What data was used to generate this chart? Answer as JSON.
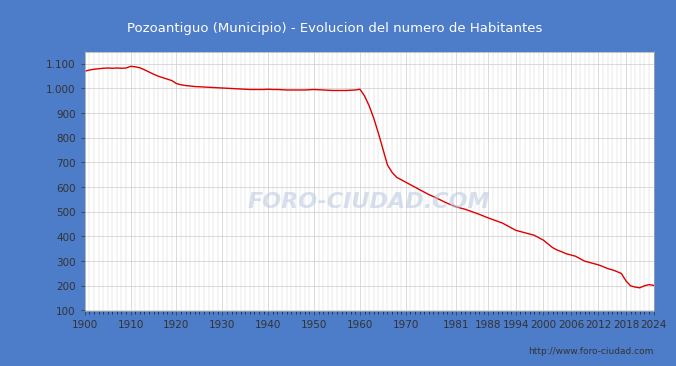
{
  "title": "Pozoantiguo (Municipio) - Evolucion del numero de Habitantes",
  "title_bg_color": "#4d7cc9",
  "title_text_color": "#ffffff",
  "line_color": "#dd0000",
  "bg_color": "#4d7cc9",
  "plot_bg_color": "#ffffff",
  "grid_color": "#cccccc",
  "watermark": "FORO-CIUDAD.COM",
  "url": "http://www.foro-ciudad.com",
  "years": [
    1900,
    1901,
    1902,
    1903,
    1904,
    1905,
    1906,
    1907,
    1908,
    1909,
    1910,
    1911,
    1912,
    1913,
    1914,
    1915,
    1916,
    1917,
    1918,
    1919,
    1920,
    1921,
    1922,
    1923,
    1924,
    1925,
    1926,
    1927,
    1928,
    1929,
    1930,
    1931,
    1932,
    1933,
    1934,
    1935,
    1936,
    1937,
    1938,
    1939,
    1940,
    1941,
    1942,
    1943,
    1944,
    1945,
    1946,
    1947,
    1948,
    1949,
    1950,
    1951,
    1952,
    1953,
    1954,
    1955,
    1956,
    1957,
    1958,
    1959,
    1960,
    1961,
    1962,
    1963,
    1964,
    1965,
    1966,
    1967,
    1968,
    1969,
    1970,
    1971,
    1972,
    1973,
    1974,
    1975,
    1976,
    1977,
    1978,
    1979,
    1981,
    1983,
    1986,
    1988,
    1991,
    1994,
    1996,
    1998,
    1999,
    2000,
    2001,
    2002,
    2003,
    2004,
    2005,
    2006,
    2007,
    2008,
    2009,
    2010,
    2011,
    2012,
    2013,
    2014,
    2015,
    2016,
    2017,
    2018,
    2019,
    2020,
    2021,
    2022,
    2023,
    2024
  ],
  "population": [
    1070,
    1075,
    1078,
    1080,
    1082,
    1083,
    1082,
    1083,
    1082,
    1083,
    1090,
    1088,
    1084,
    1076,
    1067,
    1058,
    1050,
    1044,
    1038,
    1032,
    1020,
    1015,
    1012,
    1010,
    1008,
    1007,
    1006,
    1005,
    1004,
    1003,
    1002,
    1001,
    1000,
    999,
    998,
    997,
    996,
    996,
    996,
    996,
    997,
    996,
    996,
    995,
    994,
    994,
    994,
    994,
    994,
    995,
    996,
    995,
    994,
    993,
    992,
    992,
    992,
    992,
    993,
    994,
    997,
    970,
    930,
    880,
    820,
    755,
    690,
    660,
    640,
    630,
    620,
    610,
    600,
    590,
    580,
    570,
    562,
    553,
    544,
    535,
    520,
    510,
    490,
    475,
    455,
    425,
    415,
    405,
    395,
    385,
    370,
    355,
    345,
    338,
    330,
    325,
    320,
    310,
    300,
    295,
    290,
    285,
    278,
    270,
    265,
    258,
    250,
    220,
    200,
    195,
    192,
    200,
    205,
    202
  ],
  "xlim": [
    1900,
    2024
  ],
  "ylim": [
    100,
    1150
  ],
  "yticks": [
    100,
    200,
    300,
    400,
    500,
    600,
    700,
    800,
    900,
    1000,
    1100
  ],
  "xtick_positions": [
    1900,
    1910,
    1920,
    1930,
    1940,
    1950,
    1960,
    1970,
    1981,
    1988,
    1994,
    2000,
    2006,
    2012,
    2018,
    2024
  ],
  "xtick_labels": [
    "1900",
    "1910",
    "1920",
    "1930",
    "1940",
    "1950",
    "1960",
    "1970",
    "1981",
    "1988",
    "1994",
    "2000",
    "2006",
    "2012",
    "2018",
    "2024"
  ]
}
